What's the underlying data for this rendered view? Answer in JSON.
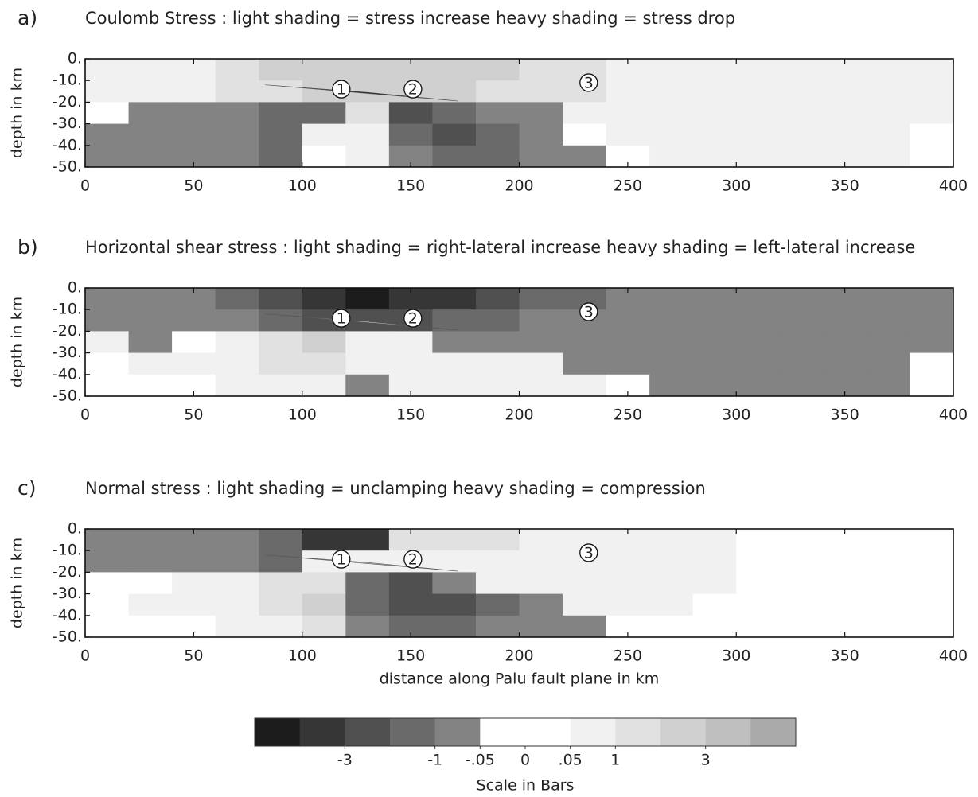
{
  "chart_data": [
    {
      "type": "heatmap",
      "panel_label": "a)",
      "title": "Coulomb Stress : light shading = stress increase      heavy shading = stress drop",
      "ylabel": "depth in km",
      "annotations": [
        "1",
        "2",
        "3"
      ],
      "x": [
        10,
        30,
        50,
        70,
        90,
        110,
        130,
        150,
        170,
        190,
        210,
        230,
        250,
        270,
        290,
        310,
        330,
        350,
        370,
        390
      ],
      "y": [
        -5,
        -15,
        -25,
        -35,
        -45
      ],
      "values": [
        [
          0.5,
          0.5,
          0.5,
          1.5,
          2.5,
          2.5,
          2.5,
          2.5,
          2.5,
          2.5,
          1.5,
          1.5,
          0.5,
          0.5,
          0.5,
          0.5,
          0.5,
          0.5,
          0.5,
          0.5
        ],
        [
          0.5,
          0.5,
          0.5,
          1.5,
          1.5,
          2.5,
          2.5,
          2.5,
          2.5,
          1.5,
          1.5,
          1.5,
          0.5,
          0.5,
          0.5,
          0.5,
          0.5,
          0.5,
          0.5,
          0.5
        ],
        [
          0.02,
          -0.5,
          -0.5,
          -0.5,
          -1.5,
          -1.5,
          1.5,
          -2.5,
          -1.5,
          -0.5,
          -0.5,
          0.5,
          0.5,
          0.5,
          0.5,
          0.5,
          0.5,
          0.5,
          0.5,
          0.5
        ],
        [
          -0.5,
          -0.5,
          -0.5,
          -0.5,
          -1.5,
          0.5,
          0.5,
          -1.5,
          -2.5,
          -1.5,
          -0.5,
          0.02,
          0.5,
          0.5,
          0.5,
          0.5,
          0.5,
          0.5,
          0.5,
          0.02
        ],
        [
          -0.5,
          -0.5,
          -0.5,
          -0.5,
          -1.5,
          0.02,
          0.5,
          -0.5,
          -1.5,
          -1.5,
          -0.5,
          -0.5,
          0.02,
          0.5,
          0.5,
          0.5,
          0.5,
          0.5,
          0.5,
          0.02
        ]
      ],
      "xlim": [
        0,
        400
      ],
      "xticks": [
        0,
        50,
        100,
        150,
        200,
        250,
        300,
        350,
        400
      ],
      "ylim": [
        -50,
        0
      ],
      "yticks": [
        {
          "value": 0,
          "label": "0."
        },
        {
          "value": -10,
          "label": "-10."
        },
        {
          "value": -20,
          "label": "-20."
        },
        {
          "value": -30,
          "label": "-30."
        },
        {
          "value": -40,
          "label": "-40."
        },
        {
          "value": -50,
          "label": "-50."
        }
      ]
    },
    {
      "type": "heatmap",
      "panel_label": "b)",
      "title": "Horizontal shear stress : light shading = right-lateral increase   heavy shading = left-lateral increase",
      "ylabel": "depth in km",
      "annotations": [
        "1",
        "2",
        "3"
      ],
      "x": [
        10,
        30,
        50,
        70,
        90,
        110,
        130,
        150,
        170,
        190,
        210,
        230,
        250,
        270,
        290,
        310,
        330,
        350,
        370,
        390
      ],
      "y": [
        -5,
        -15,
        -25,
        -35,
        -45
      ],
      "values": [
        [
          -0.5,
          -0.5,
          -0.5,
          -1.5,
          -2.5,
          -4,
          -6,
          -4,
          -4,
          -2.5,
          -1.5,
          -1.5,
          -0.5,
          -0.5,
          -0.5,
          -0.5,
          -0.5,
          -0.5,
          -0.5,
          -0.5
        ],
        [
          -0.5,
          -0.5,
          -0.5,
          -0.5,
          -1.5,
          -2.5,
          -2.5,
          -2.5,
          -1.5,
          -1.5,
          -0.5,
          -0.5,
          -0.5,
          -0.5,
          -0.5,
          -0.5,
          -0.5,
          -0.5,
          -0.5,
          -0.5
        ],
        [
          0.5,
          -0.5,
          0.02,
          0.5,
          1.5,
          2.5,
          0.5,
          0.5,
          -0.5,
          -0.5,
          -0.5,
          -0.5,
          -0.5,
          -0.5,
          -0.5,
          -0.5,
          -0.5,
          -0.5,
          -0.5,
          -0.5
        ],
        [
          0.02,
          0.5,
          0.5,
          0.5,
          1.5,
          1.5,
          0.5,
          0.5,
          0.5,
          0.5,
          0.5,
          -0.5,
          -0.5,
          -0.5,
          -0.5,
          -0.5,
          -0.5,
          -0.5,
          -0.5,
          0.02
        ],
        [
          0.02,
          0.02,
          0.02,
          0.5,
          0.5,
          0.5,
          -0.5,
          0.5,
          0.5,
          0.5,
          0.5,
          0.5,
          0.02,
          -0.5,
          -0.5,
          -0.5,
          -0.5,
          -0.5,
          -0.5,
          0.02
        ]
      ],
      "xlim": [
        0,
        400
      ],
      "xticks": [
        0,
        50,
        100,
        150,
        200,
        250,
        300,
        350,
        400
      ],
      "ylim": [
        -50,
        0
      ],
      "yticks": [
        {
          "value": 0,
          "label": "0."
        },
        {
          "value": -10,
          "label": "-10."
        },
        {
          "value": -20,
          "label": "-20."
        },
        {
          "value": -30,
          "label": "-30."
        },
        {
          "value": -40,
          "label": "-40."
        },
        {
          "value": -50,
          "label": "-50."
        }
      ]
    },
    {
      "type": "heatmap",
      "panel_label": "c)",
      "title": "Normal stress : light shading = unclamping      heavy shading = compression",
      "ylabel": "depth in km",
      "xlabel": "distance along Palu fault plane in km",
      "annotations": [
        "1",
        "2",
        "3"
      ],
      "x": [
        10,
        30,
        50,
        70,
        90,
        110,
        130,
        150,
        170,
        190,
        210,
        230,
        250,
        270,
        290,
        310,
        330,
        350,
        370,
        390
      ],
      "y": [
        -5,
        -15,
        -25,
        -35,
        -45
      ],
      "values": [
        [
          -0.5,
          -0.5,
          -0.5,
          -0.5,
          -1.5,
          -4,
          -4,
          1.5,
          1.5,
          1.5,
          0.5,
          0.5,
          0.5,
          0.5,
          0.5,
          0.02,
          0.02,
          0.02,
          0.02,
          0.02
        ],
        [
          -0.5,
          -0.5,
          -0.5,
          -0.5,
          -1.5,
          0.5,
          0.5,
          0.5,
          0.5,
          0.5,
          0.5,
          0.5,
          0.5,
          0.5,
          0.5,
          0.02,
          0.02,
          0.02,
          0.02,
          0.02
        ],
        [
          0.02,
          0.02,
          0.5,
          0.5,
          1.5,
          1.5,
          -1.5,
          -2.5,
          -0.5,
          0.5,
          0.5,
          0.5,
          0.5,
          0.5,
          0.5,
          0.02,
          0.02,
          0.02,
          0.02,
          0.02
        ],
        [
          0.02,
          0.5,
          0.5,
          0.5,
          1.5,
          2.5,
          -1.5,
          -2.5,
          -2.5,
          -1.5,
          -0.5,
          0.5,
          0.5,
          0.5,
          0.02,
          0.02,
          0.02,
          0.02,
          0.02,
          0.02
        ],
        [
          0.02,
          0.02,
          0.02,
          0.5,
          0.5,
          1.5,
          -0.5,
          -1.5,
          -1.5,
          -0.5,
          -0.5,
          -0.5,
          0.02,
          0.02,
          0.02,
          0.02,
          0.02,
          0.02,
          0.02,
          0.02
        ]
      ],
      "xlim": [
        0,
        400
      ],
      "xticks": [
        0,
        50,
        100,
        150,
        200,
        250,
        300,
        350,
        400
      ],
      "ylim": [
        -50,
        0
      ],
      "yticks": [
        {
          "value": 0,
          "label": "0."
        },
        {
          "value": -10,
          "label": "-10."
        },
        {
          "value": -20,
          "label": "-20."
        },
        {
          "value": -30,
          "label": "-30."
        },
        {
          "value": -40,
          "label": "-40."
        },
        {
          "value": -50,
          "label": "-50."
        }
      ]
    }
  ],
  "colorbar": {
    "label": "Scale in Bars",
    "levels": [
      -5,
      -3,
      -2,
      -1,
      -0.05,
      0,
      0.05,
      1,
      2,
      3,
      5
    ],
    "colors": [
      "#1c1c1c",
      "#363636",
      "#505050",
      "#6a6a6a",
      "#838383",
      "#ffffff",
      "#ffffff",
      "#f1f1f1",
      "#e1e1e1",
      "#d0d0d0",
      "#bfbfbf",
      "#aaaaaa"
    ],
    "ticks": [
      -3,
      -1,
      {
        "value": -0.05,
        "label": "-.05"
      },
      0,
      {
        "value": 0.05,
        "label": ".05"
      },
      1,
      3
    ]
  }
}
